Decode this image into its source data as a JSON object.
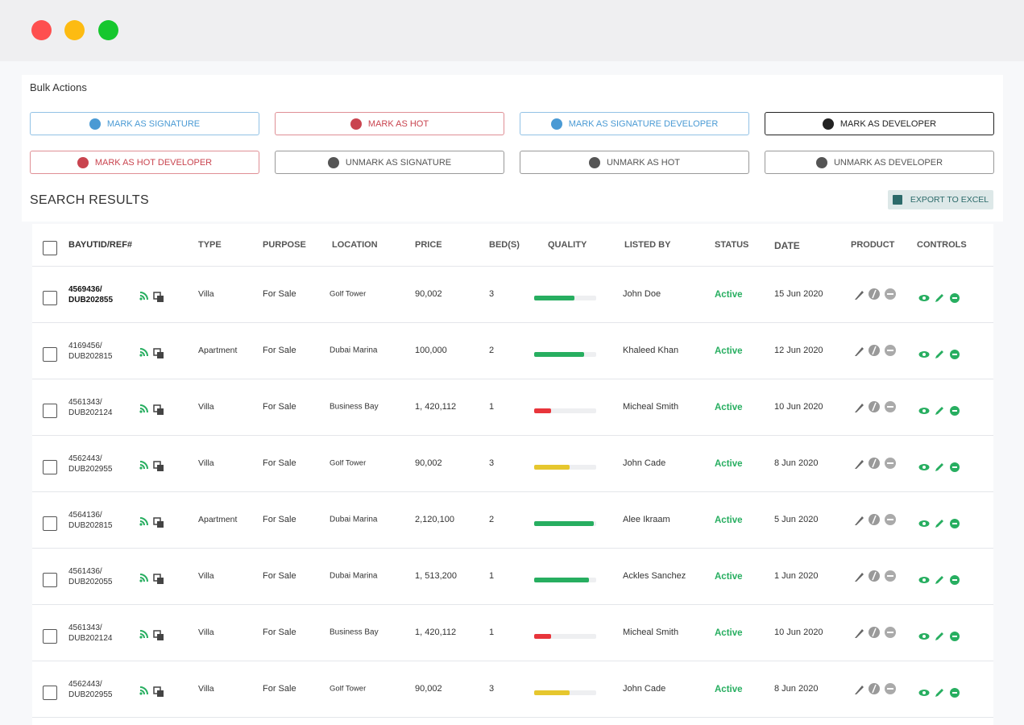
{
  "bulk_actions": {
    "title": "Bulk Actions",
    "buttons": [
      {
        "label": "MARK AS SIGNATURE",
        "color": "#4a9ad4"
      },
      {
        "label": "MARK AS HOT",
        "color": "#c9444f"
      },
      {
        "label": "MARK AS SIGNATURE DEVELOPER",
        "color": "#4a9ad4"
      },
      {
        "label": "MARK AS DEVELOPER",
        "color": "#222222"
      },
      {
        "label": "MARK AS HOT DEVELOPER",
        "color": "#c9444f"
      },
      {
        "label": "UNMARK AS SIGNATURE",
        "color": "#555555"
      },
      {
        "label": "UNMARK AS HOT",
        "color": "#555555"
      },
      {
        "label": "UNMARK AS DEVELOPER",
        "color": "#555555"
      }
    ]
  },
  "search_results": {
    "title": "SEARCH RESULTS",
    "export_label": "EXPORT TO EXCEL"
  },
  "table": {
    "headers": [
      "BAYUTID/REF#",
      "TYPE",
      "PURPOSE",
      "LOCATION",
      "PRICE",
      "BED(S)",
      "QUALITY",
      "LISTED BY",
      "STATUS",
      "DATE",
      "PRODUCT",
      "CONTROLS"
    ],
    "rows": [
      {
        "id": "4569436/",
        "ref": "DUB202855",
        "type": "Villa",
        "purpose": "For Sale",
        "location": "Golf Tower",
        "price": "90,002",
        "beds": 3,
        "quality": 65,
        "quality_color": "#27ae60",
        "listed_by": "John Doe",
        "status": "Active",
        "date": "15 Jun 2020"
      },
      {
        "id": "4169456/",
        "ref": "DUB202815",
        "type": "Apartment",
        "purpose": "For Sale",
        "location": "Dubai Marina",
        "price": "100,000",
        "beds": 2,
        "quality": 80,
        "quality_color": "#27ae60",
        "listed_by": "Khaleed Khan",
        "status": "Active",
        "date": "12 Jun 2020"
      },
      {
        "id": "4561343/",
        "ref": "DUB202124",
        "type": "Villa",
        "purpose": "For Sale",
        "location": "Business Bay",
        "price": "1, 420,112",
        "beds": 1,
        "quality": 27,
        "quality_color": "#e8353b",
        "listed_by": "Micheal Smith",
        "status": "Active",
        "date": "10 Jun 2020"
      },
      {
        "id": "4562443/",
        "ref": "DUB202955",
        "type": "Villa",
        "purpose": "For Sale",
        "location": "Golf Tower",
        "price": "90,002",
        "beds": 3,
        "quality": 57,
        "quality_color": "#e6c72e",
        "listed_by": "John Cade",
        "status": "Active",
        "date": "8 Jun 2020"
      },
      {
        "id": "4564136/",
        "ref": "DUB202815",
        "type": "Apartment",
        "purpose": "For Sale",
        "location": "Dubai Marina",
        "price": "2,120,100",
        "beds": 2,
        "quality": 96,
        "quality_color": "#27ae60",
        "listed_by": "Alee Ikraam",
        "status": "Active",
        "date": "5 Jun 2020"
      },
      {
        "id": "4561436/",
        "ref": "DUB202055",
        "type": "Villa",
        "purpose": "For Sale",
        "location": "Dubai Marina",
        "price": "1, 513,200",
        "beds": 1,
        "quality": 88,
        "quality_color": "#27ae60",
        "listed_by": "Ackles Sanchez",
        "status": "Active",
        "date": "1 Jun 2020"
      },
      {
        "id": "4561343/",
        "ref": "DUB202124",
        "type": "Villa",
        "purpose": "For Sale",
        "location": "Business Bay",
        "price": "1, 420,112",
        "beds": 1,
        "quality": 27,
        "quality_color": "#e8353b",
        "listed_by": "Micheal Smith",
        "status": "Active",
        "date": "10 Jun 2020"
      },
      {
        "id": "4562443/",
        "ref": "DUB202955",
        "type": "Villa",
        "purpose": "For Sale",
        "location": "Golf Tower",
        "price": "90,002",
        "beds": 3,
        "quality": 57,
        "quality_color": "#e6c72e",
        "listed_by": "John Cade",
        "status": "Active",
        "date": "8 Jun 2020"
      }
    ]
  }
}
